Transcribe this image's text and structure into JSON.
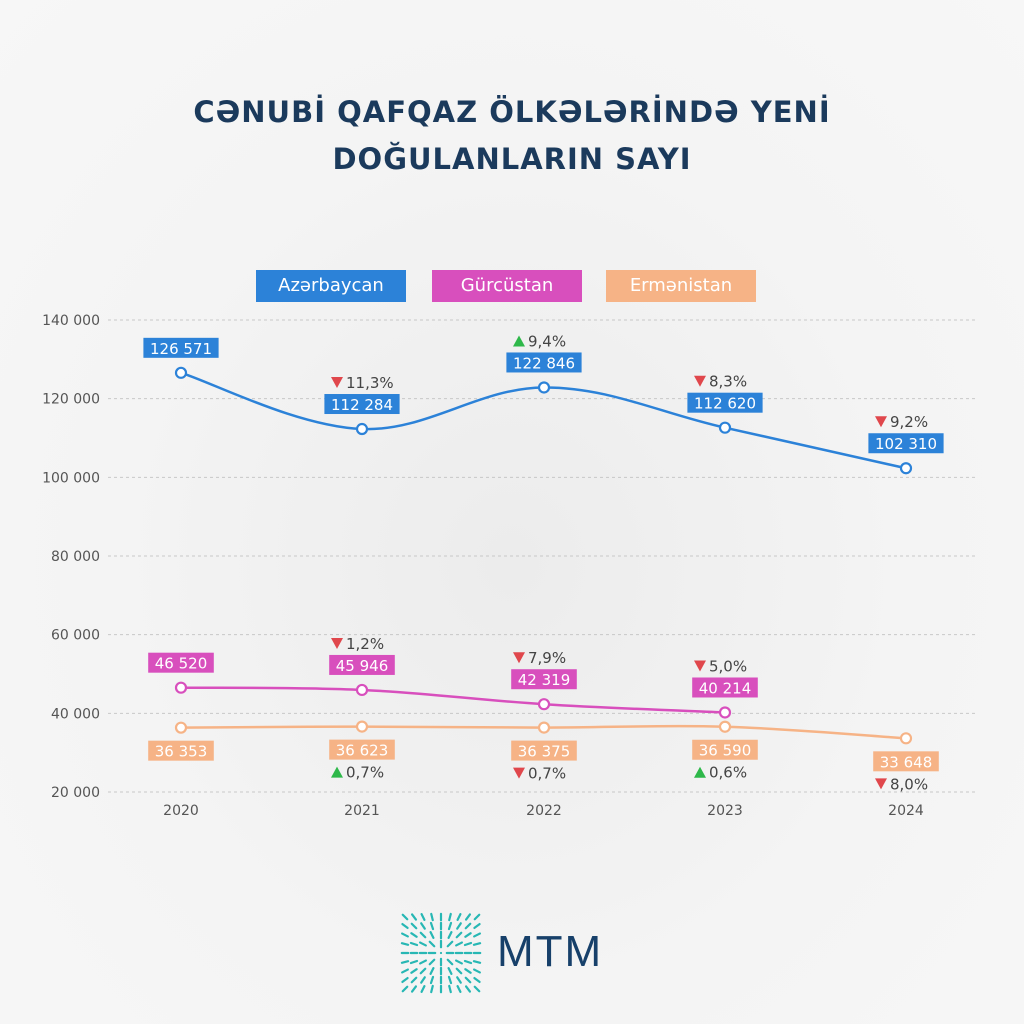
{
  "colors": {
    "title": "#1b3a5c",
    "azerbaijan": "#2c82d8",
    "georgia": "#d84fbd",
    "armenia": "#f6b386",
    "grid": "#c8c8c8",
    "axis_text": "#555555",
    "up_arrow": "#2eb84a",
    "down_arrow": "#e0474c",
    "logo": "#17406a",
    "logo_teal": "#27b7b4"
  },
  "title_line1": "CƏNUBİ QAFQAZ ÖLKƏLƏRİNDƏ YENİ",
  "title_line2": "DOĞULANLARIN SAYI",
  "logo": {
    "text": "MTM",
    "icon": "mtm-logo-icon"
  },
  "chart_data": {
    "type": "line",
    "categories": [
      "2020",
      "2021",
      "2022",
      "2023",
      "2024"
    ],
    "ylim": [
      20000,
      140000
    ],
    "yticks": [
      20000,
      40000,
      60000,
      80000,
      100000,
      120000,
      140000
    ],
    "ytick_labels": [
      "20 000",
      "40 000",
      "60 000",
      "80 000",
      "100 000",
      "120 000",
      "140 000"
    ],
    "grid": true,
    "legend_position": "top",
    "series": [
      {
        "name": "Azərbaycan",
        "color": "#2c82d8",
        "values": [
          126571,
          112284,
          122846,
          112620,
          102310
        ],
        "labels": [
          "126 571",
          "112 284",
          "122 846",
          "112 620",
          "102 310"
        ],
        "changes": [
          null,
          "11,3%",
          "9,4%",
          "8,3%",
          "9,2%"
        ],
        "directions": [
          null,
          "down",
          "up",
          "down",
          "down"
        ],
        "change_placement": "above"
      },
      {
        "name": "Gürcüstan",
        "color": "#d84fbd",
        "values": [
          46520,
          45946,
          42319,
          40214,
          null
        ],
        "labels": [
          "46 520",
          "45 946",
          "42 319",
          "40 214",
          null
        ],
        "changes": [
          null,
          "1,2%",
          "7,9%",
          "5,0%",
          null
        ],
        "directions": [
          null,
          "down",
          "down",
          "down",
          null
        ],
        "change_placement": "above"
      },
      {
        "name": "Ermənistan",
        "color": "#f6b386",
        "values": [
          36353,
          36623,
          36375,
          36590,
          33648
        ],
        "labels": [
          "36 353",
          "36 623",
          "36 375",
          "36 590",
          "33 648"
        ],
        "changes": [
          null,
          "0,7%",
          "0,7%",
          "0,6%",
          "8,0%"
        ],
        "directions": [
          null,
          "up",
          "down",
          "up",
          "down"
        ],
        "change_placement": "below"
      }
    ]
  }
}
